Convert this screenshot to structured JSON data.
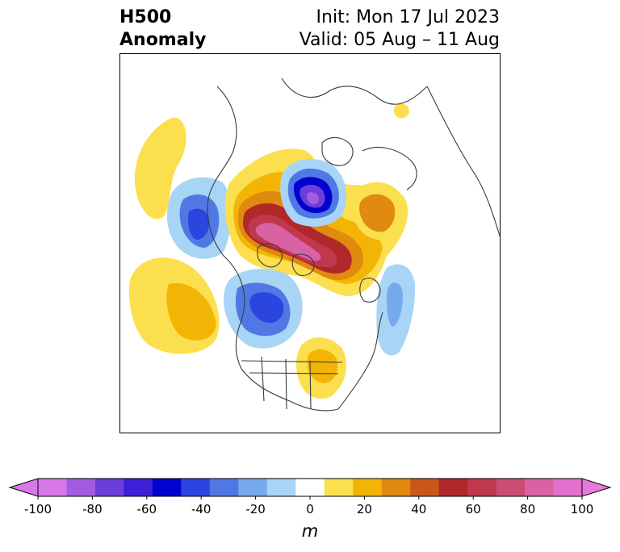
{
  "header": {
    "title_line1": "H500",
    "title_line2": "Anomaly",
    "init_label": "Init: Mon 17 Jul 2023",
    "valid_label": "Valid: 05 Aug – 11 Aug"
  },
  "map": {
    "projection": "north-polar-stereographic",
    "field": "500 hPa geopotential height anomaly"
  },
  "colorbar": {
    "unit": "m",
    "ticks": [
      "-100",
      "-80",
      "-60",
      "-40",
      "-20",
      "0",
      "20",
      "40",
      "60",
      "80",
      "100"
    ],
    "levels": [
      -100,
      -90,
      -80,
      -70,
      -60,
      -50,
      -40,
      -30,
      -20,
      -10,
      10,
      20,
      30,
      40,
      50,
      60,
      70,
      80,
      90,
      100
    ],
    "extend": "both",
    "colors": {
      "under": "#d877e8",
      "bins": [
        "#d877e8",
        "#a25ce0",
        "#6d3ddc",
        "#3e1fd6",
        "#0202d0",
        "#2b45df",
        "#5078e5",
        "#77aaec",
        "#a8d4f6",
        "#ffffff",
        "#fcdf4e",
        "#f3b505",
        "#e08a10",
        "#c9571a",
        "#b0282a",
        "#c0384e",
        "#cc4d74",
        "#d862a3",
        "#e46fcc"
      ],
      "over": "#ea78d9"
    }
  }
}
